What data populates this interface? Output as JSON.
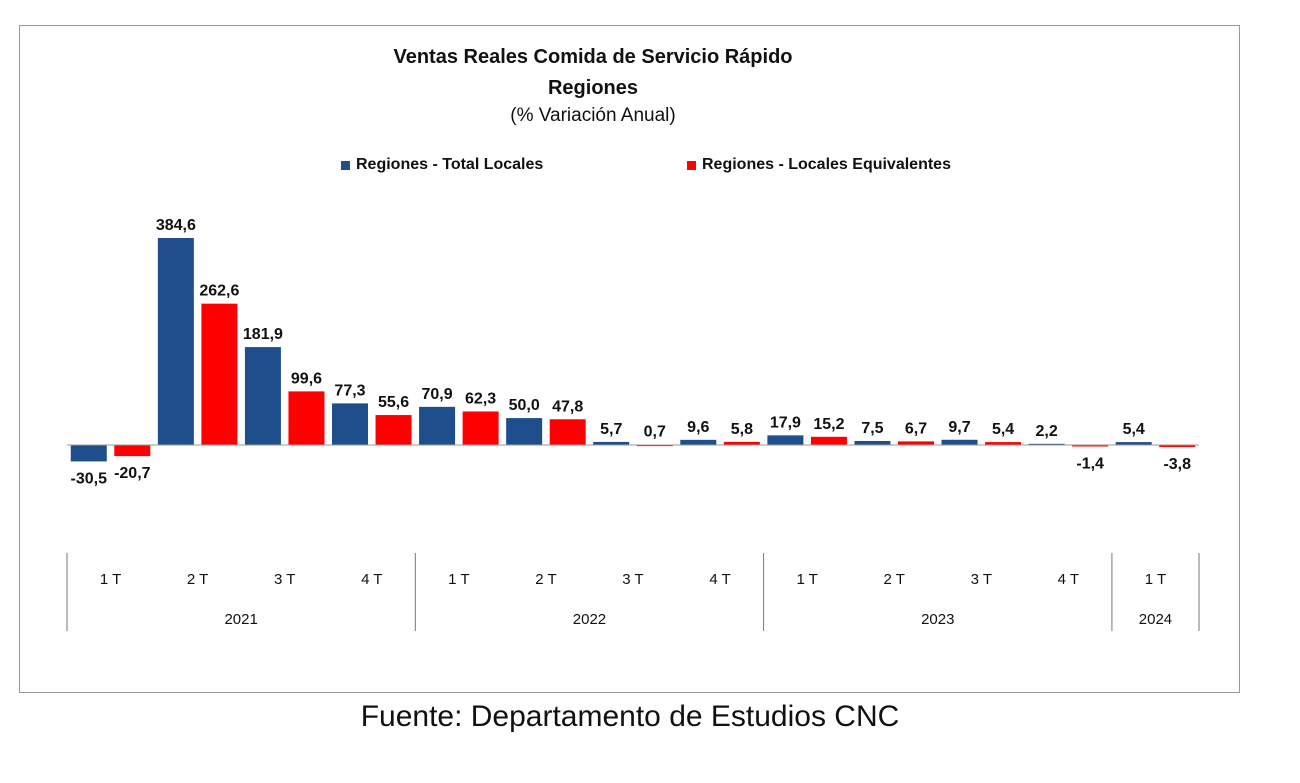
{
  "chart_data": {
    "type": "bar",
    "title": "Ventas Reales Comida de Servicio Rápido",
    "title_line2": "Regiones",
    "subtitle": "(% Variación Anual)",
    "categories": [
      "1 T",
      "2 T",
      "3 T",
      "4 T",
      "1 T",
      "2 T",
      "3 T",
      "4 T",
      "1 T",
      "2 T",
      "3 T",
      "4 T",
      "1 T"
    ],
    "groups": [
      {
        "label": "2021",
        "count": 4
      },
      {
        "label": "2022",
        "count": 4
      },
      {
        "label": "2023",
        "count": 4
      },
      {
        "label": "2024",
        "count": 1
      }
    ],
    "series": [
      {
        "name": "Regiones - Total Locales",
        "color": "#1f4e8c",
        "values": [
          -30.5,
          181.9,
          77.3,
          70.9,
          50.0,
          5.7,
          9.6,
          17.9,
          7.5,
          9.7,
          2.2,
          5.4,
          null
        ],
        "labels": [
          "-30,5",
          "181,9",
          "77,3",
          "70,9",
          "50,0",
          "5,7",
          "9,6",
          "17,9",
          "7,5",
          "9,7",
          "2,2",
          "5,4",
          ""
        ]
      },
      {
        "name": "Regiones - Locales Equivalentes",
        "color": "#ff0000",
        "values": [
          -20.7,
          99.6,
          55.6,
          62.3,
          47.8,
          0.7,
          5.8,
          15.2,
          6.7,
          5.4,
          -1.4,
          -3.8,
          null
        ],
        "labels": [
          "-20,7",
          "99,6",
          "55,6",
          "62,3",
          "47,8",
          "0,7",
          "5,8",
          "15,2",
          "6,7",
          "5,4",
          "-1,4",
          "-3,8",
          ""
        ]
      }
    ],
    "extra_bar": {
      "value": 384.6,
      "label": "384,6",
      "series": 0,
      "slot": 1,
      "note_color": "#1f4e8c"
    },
    "extra_bar2": {
      "value": 262.6,
      "label": "262,6",
      "series": 1,
      "slot": 1
    },
    "legend_position": "top",
    "grid": false
  },
  "source": "Fuente: Departamento de Estudios CNC"
}
